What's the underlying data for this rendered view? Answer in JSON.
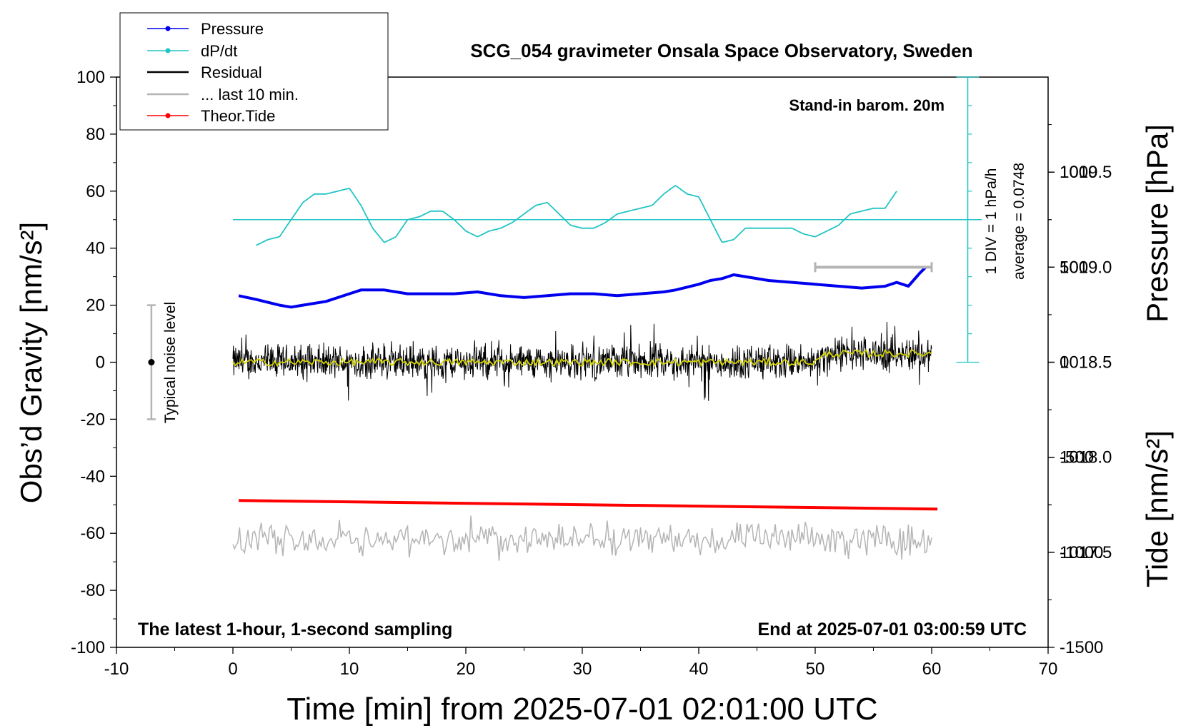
{
  "chart_data": {
    "type": "line",
    "title": "SCG_054 gravimeter Onsala Space Observatory, Sweden",
    "xlabel": "Time [min] from 2025-07-01 02:01:00 UTC",
    "ylabel_left": "Obs’d Gravity [nm/s²]",
    "ylabel_right_pressure": "Pressure [hPa]",
    "ylabel_right_tide": "Tide [nm/s²]",
    "xlim": [
      -10,
      70
    ],
    "ylim": [
      -100,
      100
    ],
    "pressure_ylim": [
      1017.0,
      1020.0
    ],
    "tide_ylim": [
      -1500,
      1500
    ],
    "x_ticks": [
      "-10",
      "0",
      "10",
      "20",
      "30",
      "40",
      "50",
      "60",
      "70"
    ],
    "y_ticks": [
      "100",
      "80",
      "60",
      "40",
      "20",
      "0",
      "-20",
      "-40",
      "-60",
      "-80",
      "-100"
    ],
    "pressure_ticks": [
      "1019.5",
      "1019.0",
      "1018.5",
      "1018.0",
      "1017.5"
    ],
    "tide_ticks": [
      "1000",
      "500",
      "0",
      "-500",
      "-1000",
      "-1500"
    ],
    "legend": {
      "position": "top-left",
      "entries": [
        {
          "label": "Pressure",
          "color": "#0000ee"
        },
        {
          "label": "dP/dt",
          "color": "#22c4c4"
        },
        {
          "label": "Residual",
          "color": "#000000"
        },
        {
          "label": "... last 10 min.",
          "color": "#b4b4b4"
        },
        {
          "label": "Theor.Tide",
          "color": "#ff0000"
        }
      ]
    },
    "annotations": {
      "barometer": "Stand-in barom. 20m",
      "div_label": "1 DIV = 1 hPa/h",
      "average_label": "average = 0.0748",
      "noise_label": "Typical noise level",
      "bottom_left": "The latest 1-hour, 1-second sampling",
      "bottom_right": "End at 2025-07-01 03:00:59 UTC"
    },
    "noise_level_bar": {
      "x": -7,
      "center": 0,
      "range": [
        -20,
        20
      ]
    },
    "last_10_min_bar": {
      "x_range": [
        50,
        60
      ],
      "tide_value": 500
    },
    "dpdt_baseline_gravity": 50,
    "series": [
      {
        "name": "Pressure",
        "color": "#0000ee",
        "x": [
          0.5,
          2,
          4,
          5,
          6,
          8,
          10,
          11,
          13,
          15,
          17,
          19,
          21,
          23,
          25,
          27,
          29,
          31,
          33,
          35,
          37,
          38,
          40,
          41,
          42,
          43,
          44,
          46,
          48,
          50,
          52,
          54,
          56,
          57,
          58,
          59,
          59.5
        ],
        "values": [
          1018.85,
          1018.83,
          1018.8,
          1018.79,
          1018.8,
          1018.82,
          1018.86,
          1018.88,
          1018.88,
          1018.86,
          1018.86,
          1018.86,
          1018.87,
          1018.85,
          1018.84,
          1018.85,
          1018.86,
          1018.86,
          1018.85,
          1018.86,
          1018.87,
          1018.88,
          1018.91,
          1018.93,
          1018.94,
          1018.96,
          1018.95,
          1018.93,
          1018.92,
          1018.91,
          1018.9,
          1018.89,
          1018.9,
          1018.92,
          1018.9,
          1018.97,
          1019.0
        ]
      },
      {
        "name": "dP/dt",
        "color": "#22c4c4",
        "x": [
          2,
          3,
          4,
          5,
          6,
          7,
          8,
          9,
          10,
          11,
          12,
          13,
          14,
          15,
          16,
          17,
          18,
          19,
          20,
          21,
          22,
          23,
          24,
          25,
          26,
          27,
          28,
          29,
          30,
          31,
          32,
          33,
          34,
          35,
          36,
          37,
          38,
          39,
          40,
          41,
          42,
          43,
          44,
          45,
          46,
          47,
          48,
          49,
          50,
          51,
          52,
          53,
          54,
          55,
          56,
          57
        ],
        "values": [
          41,
          43,
          44,
          50,
          56,
          59,
          59,
          60,
          61,
          55,
          47,
          42,
          44,
          50,
          51,
          53,
          53,
          50,
          46,
          44,
          46,
          47,
          49,
          52,
          55,
          56,
          52,
          48,
          47,
          47,
          49,
          52,
          53,
          54,
          55,
          59,
          62,
          59,
          58,
          50,
          42,
          43,
          47,
          47,
          47,
          47,
          47,
          45,
          44,
          46,
          48,
          52,
          53,
          54,
          54,
          60
        ]
      },
      {
        "name": "Residual",
        "color": "#000000",
        "x": [
          0,
          5,
          10,
          15,
          20,
          25,
          30,
          35,
          40,
          45,
          50,
          51,
          55,
          60
        ],
        "values": [
          0,
          0,
          0,
          0,
          0,
          0,
          0,
          0,
          0,
          0,
          0,
          3,
          3,
          3
        ],
        "noise_amplitude": 4
      },
      {
        "name": "... last 10 min.",
        "color": "#b4b4b4",
        "x_range": [
          0,
          60
        ],
        "center": -62,
        "noise_amplitude": 4
      },
      {
        "name": "Theor.Tide",
        "color": "#ff0000",
        "x": [
          0.5,
          60.5
        ],
        "values": [
          -48.5,
          -51.5
        ]
      }
    ]
  }
}
